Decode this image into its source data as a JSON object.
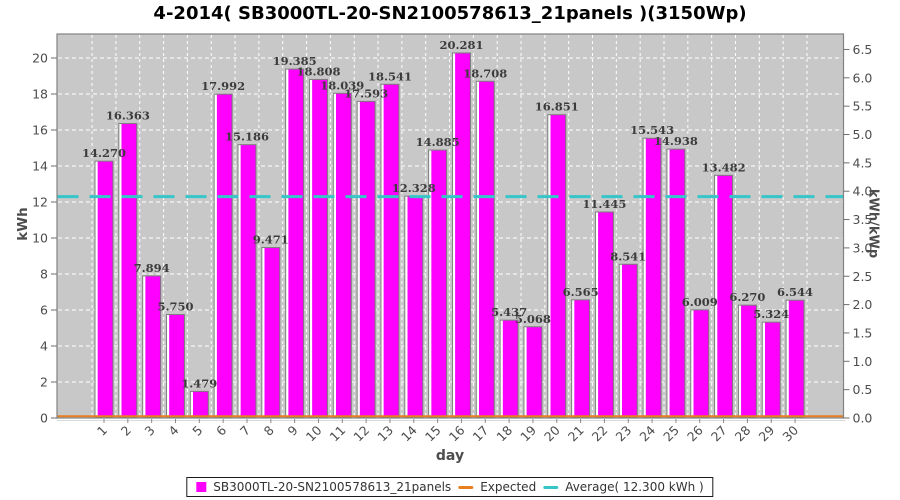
{
  "title": "4-2014( SB3000TL-20-SN2100578613_21panels )(3150Wp)",
  "chart_data": {
    "type": "bar",
    "title": "4-2014( SB3000TL-20-SN2100578613_21panels )(3150Wp)",
    "xlabel": "day",
    "ylabel_left": "kWh",
    "ylabel_right": "kWh/kWp",
    "categories": [
      "1",
      "2",
      "3",
      "4",
      "5",
      "6",
      "7",
      "8",
      "9",
      "10",
      "11",
      "12",
      "13",
      "14",
      "15",
      "16",
      "17",
      "18",
      "19",
      "20",
      "21",
      "22",
      "23",
      "24",
      "25",
      "26",
      "27",
      "28",
      "29",
      "30"
    ],
    "series": [
      {
        "name": "SB3000TL-20-SN2100578613_21panels",
        "color": "#FF00FF",
        "values": [
          14.27,
          16.363,
          7.894,
          5.75,
          1.479,
          17.992,
          15.186,
          9.471,
          19.385,
          18.808,
          18.039,
          17.593,
          18.541,
          12.328,
          14.885,
          20.281,
          18.708,
          5.437,
          5.068,
          16.851,
          6.565,
          11.445,
          8.541,
          15.543,
          14.938,
          6.009,
          13.482,
          6.27,
          5.324,
          6.544
        ]
      }
    ],
    "expected_line": {
      "label": "Expected",
      "color": "#E87E1E",
      "value": 0
    },
    "average_line": {
      "label": "Average( 12.300 kWh )",
      "color": "#35C6C9",
      "value": 12.3
    },
    "y_left": {
      "min": 0,
      "max": 21.3,
      "ticks": [
        0,
        2,
        4,
        6,
        8,
        10,
        12,
        14,
        16,
        18,
        20
      ]
    },
    "y_right": {
      "min": 0,
      "max": 6.5,
      "ticks": [
        0,
        0.5,
        1,
        1.5,
        2,
        2.5,
        3,
        3.5,
        4,
        4.5,
        5,
        5.5,
        6,
        6.5
      ],
      "kwp_factor": 3.15
    },
    "plot_bg": "#C8C8C8",
    "grid_color": "#FFFFFF",
    "grid": "dashed",
    "legend_position": "bottom"
  }
}
